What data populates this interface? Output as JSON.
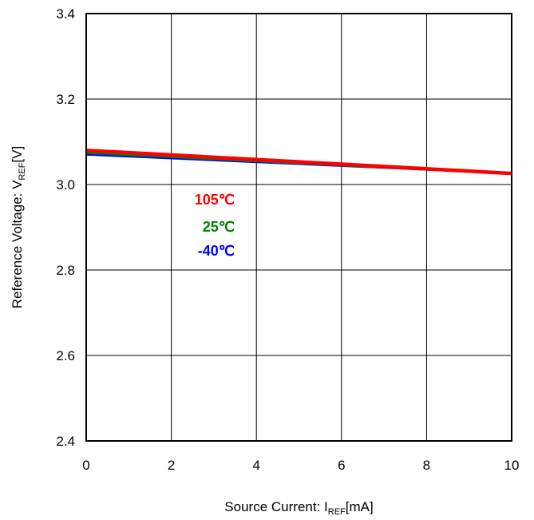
{
  "chart_data": {
    "type": "line",
    "title": "",
    "xlabel": {
      "main": "Source Current: I",
      "sub": "REF",
      "unit": "[mA]"
    },
    "ylabel": {
      "main": "Reference Voltage: V",
      "sub": "REF",
      "unit": "[V]"
    },
    "xlim": [
      0,
      10
    ],
    "ylim": [
      2.4,
      3.4
    ],
    "x_ticks": [
      "0",
      "2",
      "4",
      "6",
      "8",
      "10"
    ],
    "y_ticks": [
      "2.4",
      "2.6",
      "2.8",
      "3.0",
      "3.2",
      "3.4"
    ],
    "grid": true,
    "x": [
      0,
      10
    ],
    "series": [
      {
        "name": "-40℃",
        "color": "#0000ff",
        "values": [
          3.07,
          3.026
        ]
      },
      {
        "name": "25℃",
        "color": "#008000",
        "values": [
          3.075,
          3.026
        ]
      },
      {
        "name": "105℃",
        "color": "#ff0000",
        "values": [
          3.08,
          3.026
        ]
      }
    ],
    "legend": [
      {
        "label": "105℃",
        "color": "#ff0000"
      },
      {
        "label": "25℃",
        "color": "#008000"
      },
      {
        "label": "-40℃",
        "color": "#0000ff"
      }
    ],
    "legend_placement": "center-left"
  }
}
